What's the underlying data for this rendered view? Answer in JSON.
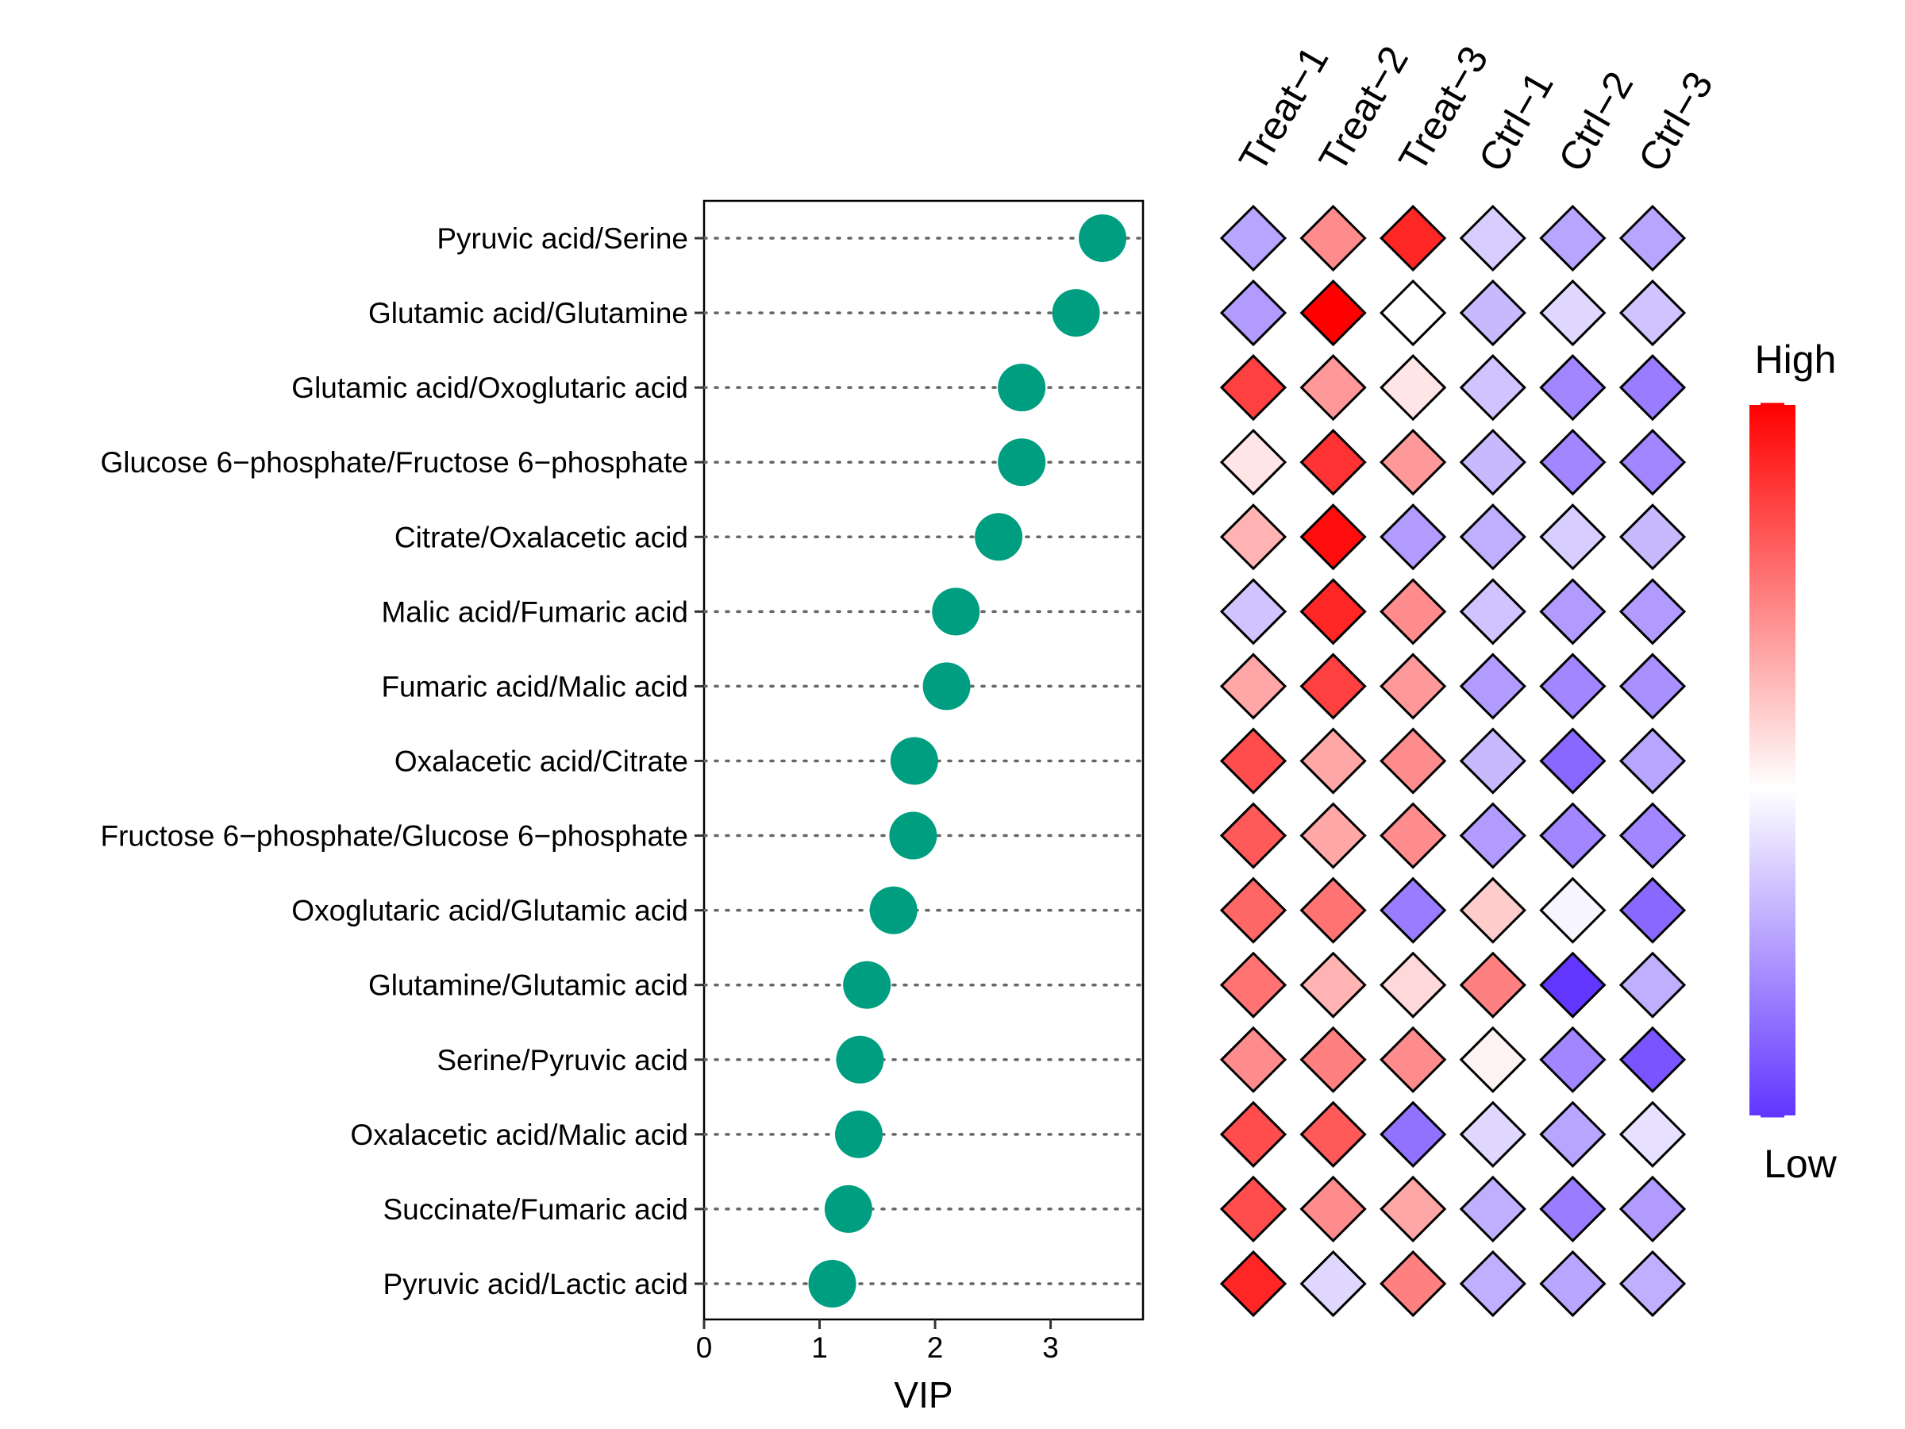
{
  "chart_data": [
    {
      "type": "scatter",
      "subtype": "lollipop-dot",
      "xlabel": "VIP",
      "xlim": [
        0,
        3.8
      ],
      "xticks": [
        "0",
        "1",
        "2",
        "3"
      ],
      "categories": [
        "Pyruvic acid/Serine",
        "Glutamic acid/Glutamine",
        "Glutamic acid/Oxoglutaric acid",
        "Glucose 6−phosphate/Fructose 6−phosphate",
        "Citrate/Oxalacetic acid",
        "Malic acid/Fumaric acid",
        "Fumaric acid/Malic acid",
        "Oxalacetic acid/Citrate",
        "Fructose 6−phosphate/Glucose 6−phosphate",
        "Oxoglutaric acid/Glutamic acid",
        "Glutamine/Glutamic acid",
        "Serine/Pyruvic acid",
        "Oxalacetic acid/Malic acid",
        "Succinate/Fumaric acid",
        "Pyruvic acid/Lactic acid"
      ],
      "values": [
        3.45,
        3.22,
        2.75,
        2.75,
        2.55,
        2.18,
        2.1,
        1.82,
        1.81,
        1.64,
        1.41,
        1.35,
        1.34,
        1.25,
        1.11
      ],
      "point_color": "#009E80"
    },
    {
      "type": "heatmap",
      "shape": "diamond",
      "columns": [
        "Treat−1",
        "Treat−2",
        "Treat−3",
        "Ctrl−1",
        "Ctrl−2",
        "Ctrl−3"
      ],
      "rows": [
        "Pyruvic acid/Serine",
        "Glutamic acid/Glutamine",
        "Glutamic acid/Oxoglutaric acid",
        "Glucose 6−phosphate/Fructose 6−phosphate",
        "Citrate/Oxalacetic acid",
        "Malic acid/Fumaric acid",
        "Fumaric acid/Malic acid",
        "Oxalacetic acid/Citrate",
        "Fructose 6−phosphate/Glucose 6−phosphate",
        "Oxoglutaric acid/Glutamic acid",
        "Glutamine/Glutamic acid",
        "Serine/Pyruvic acid",
        "Oxalacetic acid/Malic acid",
        "Succinate/Fumaric acid",
        "Pyruvic acid/Lactic acid"
      ],
      "values": [
        [
          -0.45,
          0.45,
          0.85,
          -0.25,
          -0.45,
          -0.45
        ],
        [
          -0.5,
          1.0,
          0.0,
          -0.35,
          -0.2,
          -0.3
        ],
        [
          0.75,
          0.4,
          0.1,
          -0.3,
          -0.6,
          -0.65
        ],
        [
          0.1,
          0.8,
          0.4,
          -0.35,
          -0.6,
          -0.6
        ],
        [
          0.3,
          0.95,
          -0.5,
          -0.4,
          -0.25,
          -0.35
        ],
        [
          -0.3,
          0.85,
          0.45,
          -0.3,
          -0.5,
          -0.5
        ],
        [
          0.35,
          0.75,
          0.4,
          -0.5,
          -0.6,
          -0.55
        ],
        [
          0.7,
          0.35,
          0.45,
          -0.35,
          -0.75,
          -0.45
        ],
        [
          0.65,
          0.35,
          0.45,
          -0.5,
          -0.6,
          -0.6
        ],
        [
          0.6,
          0.55,
          -0.65,
          0.2,
          -0.05,
          -0.75
        ],
        [
          0.55,
          0.3,
          0.15,
          0.5,
          -1.0,
          -0.4
        ],
        [
          0.45,
          0.5,
          0.45,
          0.05,
          -0.6,
          -0.85
        ],
        [
          0.7,
          0.65,
          -0.7,
          -0.2,
          -0.45,
          -0.15
        ],
        [
          0.7,
          0.45,
          0.35,
          -0.4,
          -0.65,
          -0.5
        ],
        [
          0.85,
          -0.2,
          0.5,
          -0.4,
          -0.45,
          -0.4
        ]
      ],
      "scale": {
        "min": -1,
        "max": 1,
        "low_color": "#6236FF",
        "mid_color": "#FFFFFF",
        "high_color": "#FF0000",
        "high_label": "High",
        "low_label": "Low"
      }
    }
  ]
}
